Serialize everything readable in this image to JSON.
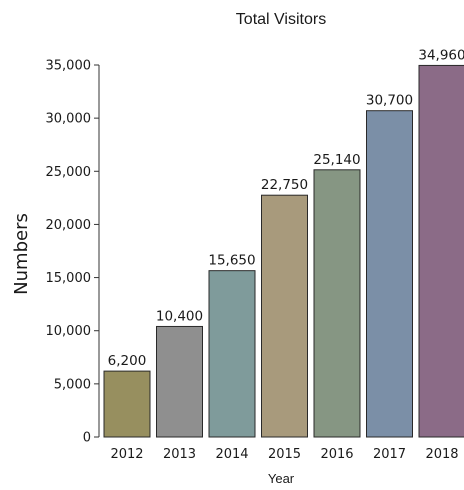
{
  "chart_data": {
    "type": "bar",
    "title": "Total Visitors",
    "xlabel": "Year",
    "ylabel": "Numbers",
    "categories": [
      "2012",
      "2013",
      "2014",
      "2015",
      "2016",
      "2017",
      "2018"
    ],
    "values": [
      6200,
      10400,
      15650,
      22750,
      25140,
      30700,
      34960
    ],
    "value_labels": [
      "6,200",
      "10,400",
      "15,650",
      "22,750",
      "25,140",
      "30,700",
      "34,960"
    ],
    "ylim": [
      0,
      35000
    ],
    "yticks": [
      0,
      5000,
      10000,
      15000,
      20000,
      25000,
      30000,
      35000
    ],
    "ytick_labels": [
      "0",
      "5,000",
      "10,000",
      "15,000",
      "20,000",
      "25,000",
      "30,000",
      "35,000"
    ],
    "colors": [
      "#978f5f",
      "#8f8f8f",
      "#7f9b9b",
      "#a89a7c",
      "#869683",
      "#7b8fa7",
      "#8b6b87"
    ],
    "grid": false,
    "legend": "none"
  }
}
